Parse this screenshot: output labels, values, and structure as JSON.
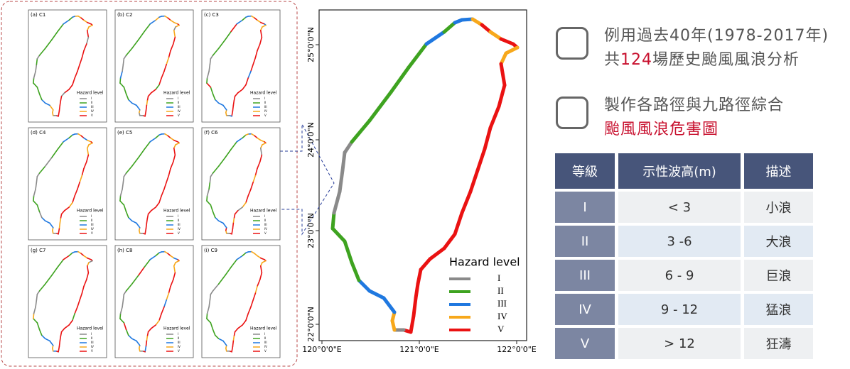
{
  "panels": [
    "(a) C1",
    "(b) C2",
    "(c) C3",
    "(d) C4",
    "(e) C5",
    "(f) C6",
    "(g) C7",
    "(h) C8",
    "(i) C9"
  ],
  "legend": {
    "title": "Hazard level",
    "levels": [
      {
        "name": "I",
        "color": "#8a8a8a"
      },
      {
        "name": "II",
        "color": "#3ea320"
      },
      {
        "name": "III",
        "color": "#1f78e0"
      },
      {
        "name": "IV",
        "color": "#f7a81b"
      },
      {
        "name": "V",
        "color": "#ea1212"
      }
    ]
  },
  "map": {
    "yticks": [
      "25°0'0\"N",
      "24°0'0\"N",
      "23°0'0\"N",
      "22°0'0\"N"
    ],
    "xticks": [
      "120°0'0\"E",
      "121°0'0\"E",
      "122°0'0\"E"
    ]
  },
  "notes": [
    {
      "line1": "例用過去40年(1978-2017年)",
      "line2_before": "共",
      "line2_highlight": "124",
      "line2_after": "場歷史颱風風浪分析"
    },
    {
      "line1": "製作各路徑與九路徑綜合",
      "line2_highlight": "颱風風浪危害圖"
    }
  ],
  "table": {
    "header": [
      "等級",
      "示性波高(m)",
      "描述"
    ],
    "rows": [
      [
        "I",
        "< 3",
        "小浪"
      ],
      [
        "II",
        "3 -6",
        "大浪"
      ],
      [
        "III",
        "6 - 9",
        "巨浪"
      ],
      [
        "IV",
        "9 - 12",
        "猛浪"
      ],
      [
        "V",
        "> 12",
        "狂濤"
      ]
    ]
  }
}
